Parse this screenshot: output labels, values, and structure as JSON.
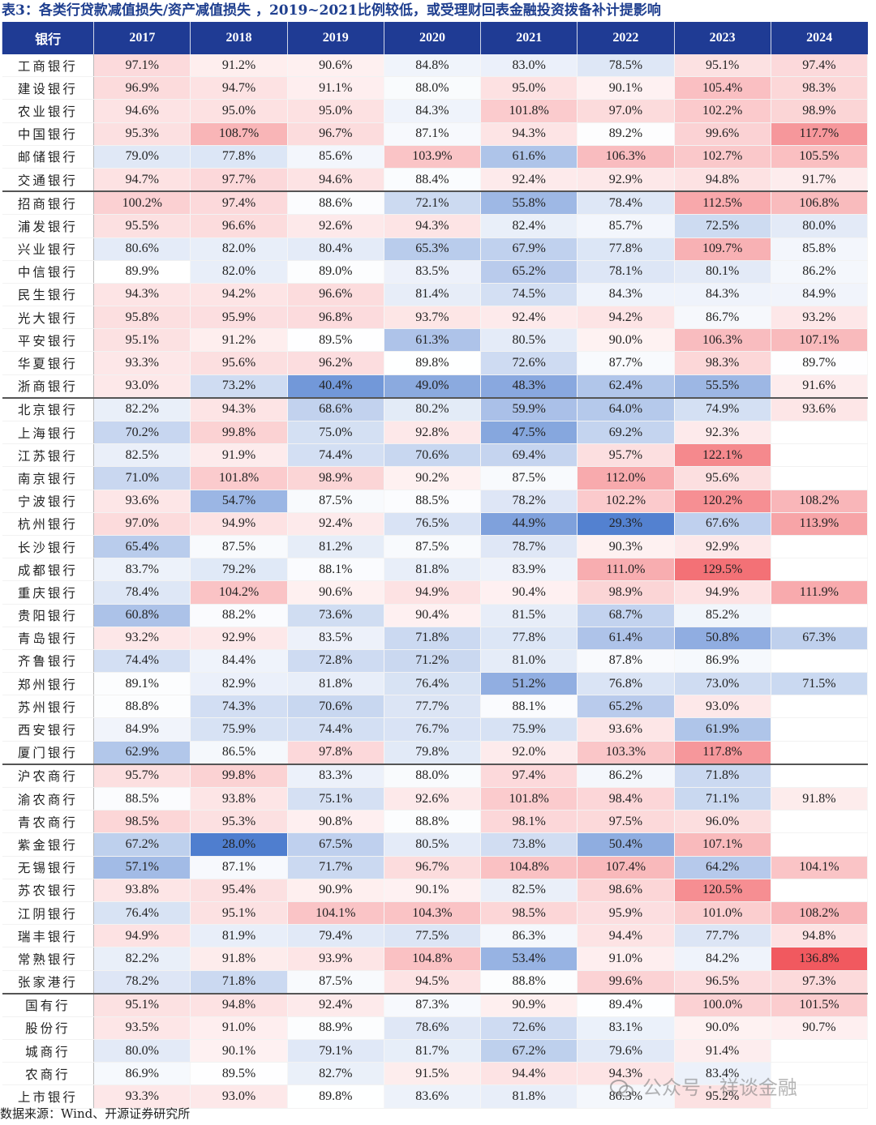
{
  "title": "表3：各类行贷款减值损失/资产减值损失 ，2019~2021比例较低，或受理财回表金融投资拨备补计提影响",
  "table": {
    "header": [
      "银行",
      "2017",
      "2018",
      "2019",
      "2020",
      "2021",
      "2022",
      "2023",
      "2024"
    ],
    "groups": [
      [
        {
          "name": "工商银行",
          "values": [
            97.1,
            91.2,
            90.6,
            84.8,
            83.0,
            78.5,
            95.1,
            97.4
          ]
        },
        {
          "name": "建设银行",
          "values": [
            96.9,
            94.7,
            91.1,
            88.0,
            95.0,
            90.1,
            105.4,
            98.3
          ]
        },
        {
          "name": "农业银行",
          "values": [
            94.6,
            95.0,
            95.0,
            84.3,
            101.8,
            97.0,
            102.2,
            98.9
          ]
        },
        {
          "name": "中国银行",
          "values": [
            95.3,
            108.7,
            96.7,
            87.1,
            94.3,
            89.2,
            99.6,
            117.7
          ]
        },
        {
          "name": "邮储银行",
          "values": [
            79.0,
            77.8,
            85.6,
            103.9,
            61.6,
            106.3,
            102.7,
            105.5
          ]
        },
        {
          "name": "交通银行",
          "values": [
            94.7,
            97.7,
            94.6,
            88.4,
            92.4,
            92.9,
            94.8,
            91.7
          ]
        }
      ],
      [
        {
          "name": "招商银行",
          "values": [
            100.2,
            97.4,
            88.6,
            72.1,
            55.8,
            78.4,
            112.5,
            106.8
          ]
        },
        {
          "name": "浦发银行",
          "values": [
            95.5,
            96.6,
            92.6,
            94.3,
            82.4,
            85.7,
            72.5,
            80.0
          ]
        },
        {
          "name": "兴业银行",
          "values": [
            80.6,
            82.0,
            80.4,
            65.3,
            67.9,
            77.8,
            109.7,
            85.8
          ]
        },
        {
          "name": "中信银行",
          "values": [
            89.9,
            82.0,
            89.0,
            83.5,
            65.2,
            78.1,
            80.1,
            86.2
          ]
        },
        {
          "name": "民生银行",
          "values": [
            94.3,
            94.2,
            96.6,
            81.4,
            74.5,
            84.3,
            84.3,
            84.9
          ]
        },
        {
          "name": "光大银行",
          "values": [
            95.8,
            95.9,
            96.8,
            93.7,
            92.4,
            94.2,
            86.7,
            93.2
          ]
        },
        {
          "name": "平安银行",
          "values": [
            95.1,
            91.2,
            89.5,
            61.3,
            80.5,
            90.0,
            106.3,
            107.1
          ]
        },
        {
          "name": "华夏银行",
          "values": [
            93.3,
            95.6,
            96.2,
            89.8,
            72.6,
            87.7,
            98.3,
            89.7
          ]
        },
        {
          "name": "浙商银行",
          "values": [
            93.0,
            73.2,
            40.4,
            49.0,
            48.3,
            62.4,
            55.5,
            91.6
          ]
        }
      ],
      [
        {
          "name": "北京银行",
          "values": [
            82.2,
            94.3,
            68.6,
            80.2,
            59.9,
            64.0,
            74.9,
            93.6
          ]
        },
        {
          "name": "上海银行",
          "values": [
            70.2,
            99.8,
            75.0,
            92.8,
            47.5,
            69.2,
            92.3,
            null
          ]
        },
        {
          "name": "江苏银行",
          "values": [
            82.5,
            91.9,
            74.4,
            70.6,
            69.4,
            95.7,
            122.1,
            null
          ]
        },
        {
          "name": "南京银行",
          "values": [
            71.0,
            101.8,
            98.9,
            90.2,
            87.5,
            112.0,
            95.6,
            null
          ]
        },
        {
          "name": "宁波银行",
          "values": [
            93.6,
            54.7,
            87.5,
            88.5,
            78.2,
            102.2,
            120.2,
            108.2
          ]
        },
        {
          "name": "杭州银行",
          "values": [
            97.0,
            94.9,
            92.4,
            76.5,
            44.9,
            29.3,
            67.6,
            113.9
          ]
        },
        {
          "name": "长沙银行",
          "values": [
            65.4,
            87.5,
            81.2,
            87.5,
            78.7,
            90.3,
            92.9,
            null
          ]
        },
        {
          "name": "成都银行",
          "values": [
            83.7,
            79.2,
            88.1,
            81.8,
            83.9,
            111.0,
            129.5,
            null
          ]
        },
        {
          "name": "重庆银行",
          "values": [
            78.4,
            104.2,
            90.6,
            94.9,
            90.4,
            98.9,
            94.9,
            111.9
          ]
        },
        {
          "name": "贵阳银行",
          "values": [
            60.8,
            88.2,
            73.6,
            90.4,
            81.5,
            68.7,
            85.2,
            null
          ]
        },
        {
          "name": "青岛银行",
          "values": [
            93.2,
            92.9,
            83.5,
            71.8,
            77.8,
            61.4,
            50.8,
            67.3
          ]
        },
        {
          "name": "齐鲁银行",
          "values": [
            74.4,
            84.4,
            72.8,
            71.2,
            81.0,
            87.8,
            86.9,
            null
          ]
        },
        {
          "name": "郑州银行",
          "values": [
            89.1,
            82.9,
            81.8,
            76.4,
            51.2,
            76.8,
            73.0,
            71.5
          ]
        },
        {
          "name": "苏州银行",
          "values": [
            88.8,
            74.3,
            70.6,
            77.7,
            88.1,
            65.2,
            93.0,
            null
          ]
        },
        {
          "name": "西安银行",
          "values": [
            84.9,
            75.9,
            74.4,
            76.7,
            75.9,
            93.6,
            61.9,
            null
          ]
        },
        {
          "name": "厦门银行",
          "values": [
            62.9,
            86.5,
            97.8,
            79.8,
            92.0,
            103.3,
            117.8,
            null
          ]
        }
      ],
      [
        {
          "name": "沪农商行",
          "values": [
            95.7,
            99.8,
            83.3,
            88.0,
            97.4,
            86.2,
            71.8,
            null
          ]
        },
        {
          "name": "渝农商行",
          "values": [
            88.5,
            93.8,
            75.1,
            92.6,
            101.8,
            98.4,
            71.1,
            91.8
          ]
        },
        {
          "name": "青农商行",
          "values": [
            98.5,
            95.3,
            90.8,
            88.8,
            98.1,
            97.5,
            96.0,
            null
          ]
        },
        {
          "name": "紫金银行",
          "values": [
            67.2,
            28.0,
            67.5,
            80.5,
            73.8,
            50.4,
            107.1,
            null
          ]
        },
        {
          "name": "无锡银行",
          "values": [
            57.1,
            87.1,
            71.7,
            96.7,
            104.8,
            107.4,
            64.2,
            104.1
          ]
        },
        {
          "name": "苏农银行",
          "values": [
            93.8,
            95.4,
            90.9,
            90.1,
            82.5,
            98.6,
            120.5,
            null
          ]
        },
        {
          "name": "江阴银行",
          "values": [
            76.4,
            95.1,
            104.1,
            104.3,
            98.5,
            95.9,
            101.0,
            108.2
          ]
        },
        {
          "name": "瑞丰银行",
          "values": [
            94.9,
            81.9,
            79.4,
            77.5,
            86.3,
            94.4,
            77.7,
            94.8
          ]
        },
        {
          "name": "常熟银行",
          "values": [
            82.2,
            91.8,
            93.9,
            104.8,
            53.4,
            91.0,
            84.2,
            136.8
          ]
        },
        {
          "name": "张家港行",
          "values": [
            78.2,
            71.8,
            87.5,
            94.5,
            88.8,
            99.6,
            96.5,
            97.3
          ]
        }
      ],
      [
        {
          "name": "国有行",
          "values": [
            95.1,
            94.8,
            92.4,
            87.3,
            90.9,
            89.4,
            100.0,
            101.5
          ]
        },
        {
          "name": "股份行",
          "values": [
            93.5,
            91.0,
            88.9,
            78.6,
            72.6,
            83.1,
            90.0,
            90.7
          ]
        },
        {
          "name": "城商行",
          "values": [
            80.0,
            90.1,
            79.1,
            81.7,
            67.2,
            79.6,
            91.4,
            null
          ]
        },
        {
          "name": "农商行",
          "values": [
            86.9,
            89.5,
            82.7,
            91.5,
            94.4,
            94.3,
            83.4,
            null
          ]
        },
        {
          "name": "上市银行",
          "values": [
            93.3,
            93.0,
            89.8,
            83.6,
            81.8,
            86.3,
            95.2,
            null
          ]
        }
      ]
    ]
  },
  "source": "数据来源：Wind、开源证券研究所",
  "watermark": "公众号 · 祥谈金融",
  "colors": {
    "header_bg": "#1f3b94",
    "title": "#1f3f8f",
    "high": "#f1585e",
    "low": "#4f7ecf"
  }
}
